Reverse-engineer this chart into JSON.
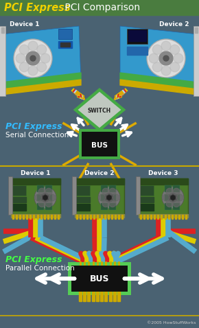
{
  "title_pci": "PCI Express",
  "title_rest": " PCI Comparison",
  "title_bg": "#4a7c3f",
  "title_pci_color": "#f0d000",
  "title_rest_color": "#ffffff",
  "bg_color": "#4a6272",
  "divider_color": "#c8a800",
  "top_label": "PCI Express",
  "top_sublabel": "Serial Connection",
  "bottom_label": "PCI Express",
  "bottom_sublabel": "Parallel Connection",
  "label_color_top": "#33bbff",
  "label_color_bot": "#44ff44",
  "switch_label": "SWITCH",
  "bus_label": "BUS",
  "device1_top": "Device 1",
  "device2_top": "Device 2",
  "device1_bot": "Device 1",
  "device2_bot": "Device 2",
  "device3_bot": "Device 3",
  "copyright": "©2005 HowStuffWorks",
  "switch_chip_silver": "#c0c8c0",
  "switch_border": "#44aa44",
  "bus_top_chip": "#111111",
  "bus_top_border": "#44aa44",
  "bus_bot_chip": "#111111",
  "bus_bot_border": "#55cc55",
  "arrow_white": "#ffffff",
  "arrow_red": "#dd2222",
  "arrow_yellow": "#ddcc00",
  "arrow_blue": "#55aacc",
  "arrow_lightblue": "#aaddee",
  "card_blue_body": "#3399cc",
  "card_blue_fan": "#dddddd",
  "card_blue_bracket": "#cccccc",
  "card_blue_stripe_green": "#44aa44",
  "card_blue_stripe_gold": "#ccaa00",
  "card_green_body": "#4a7a2a",
  "card_green_dark": "#3a5a1a",
  "card_green_fan": "#888888",
  "pin_gold": "#ccaa00",
  "orange_line": "#ddaa00"
}
